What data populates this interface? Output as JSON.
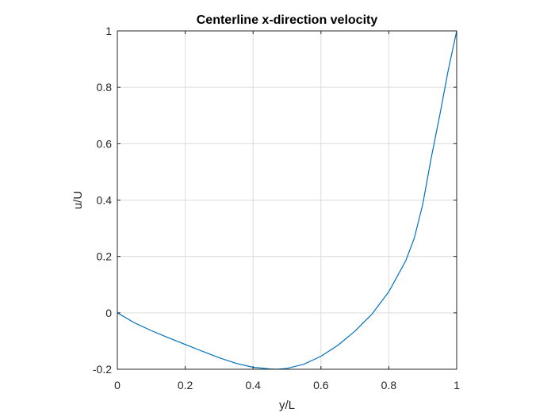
{
  "chart_data": {
    "type": "line",
    "title": "Centerline x-direction velocity",
    "xlabel": "y/L",
    "ylabel": "u/U",
    "xlim": [
      0,
      1
    ],
    "ylim": [
      -0.2,
      1
    ],
    "xticks": [
      0,
      0.2,
      0.4,
      0.6,
      0.8,
      1
    ],
    "xtick_labels": [
      "0",
      "0.2",
      "0.4",
      "0.6",
      "0.8",
      "1"
    ],
    "yticks": [
      -0.2,
      0,
      0.2,
      0.4,
      0.6,
      0.8,
      1
    ],
    "ytick_labels": [
      "-0.2",
      "0",
      "0.2",
      "0.4",
      "0.6",
      "0.8",
      "1"
    ],
    "grid": true,
    "legend": "none",
    "series": [
      {
        "color": "#0072BD",
        "x": [
          0,
          0.05,
          0.1,
          0.15,
          0.2,
          0.25,
          0.3,
          0.35,
          0.4,
          0.45,
          0.47,
          0.5,
          0.55,
          0.6,
          0.65,
          0.7,
          0.75,
          0.8,
          0.85,
          0.875,
          0.9,
          0.925,
          0.95,
          0.975,
          1
        ],
        "y": [
          0,
          -0.035,
          -0.063,
          -0.088,
          -0.112,
          -0.136,
          -0.159,
          -0.179,
          -0.193,
          -0.199,
          -0.2,
          -0.197,
          -0.182,
          -0.154,
          -0.115,
          -0.065,
          -0.005,
          0.075,
          0.185,
          0.265,
          0.385,
          0.55,
          0.7,
          0.86,
          1
        ]
      }
    ]
  },
  "colors": {
    "line": "#0072BD",
    "axis": "#262626",
    "grid": "#dcdcdc"
  }
}
